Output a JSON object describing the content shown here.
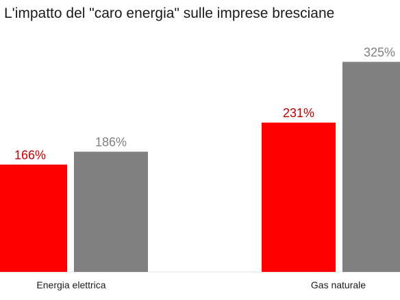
{
  "chart_data": {
    "type": "bar",
    "title": "L'impatto del \"caro energia\" sulle imprese bresciane",
    "categories": [
      "Energia elettrica",
      "Gas naturale"
    ],
    "series": [
      {
        "values": [
          166,
          231
        ],
        "labels": [
          "166%",
          "231%"
        ],
        "color": "#ff0000",
        "label_color": "#c00000"
      },
      {
        "values": [
          186,
          325
        ],
        "labels": [
          "186%",
          "325%"
        ],
        "color": "#808080",
        "label_color": "#808080"
      }
    ],
    "unit": "%",
    "ylim": [
      0,
      355
    ],
    "grid": false,
    "legend": "none"
  }
}
